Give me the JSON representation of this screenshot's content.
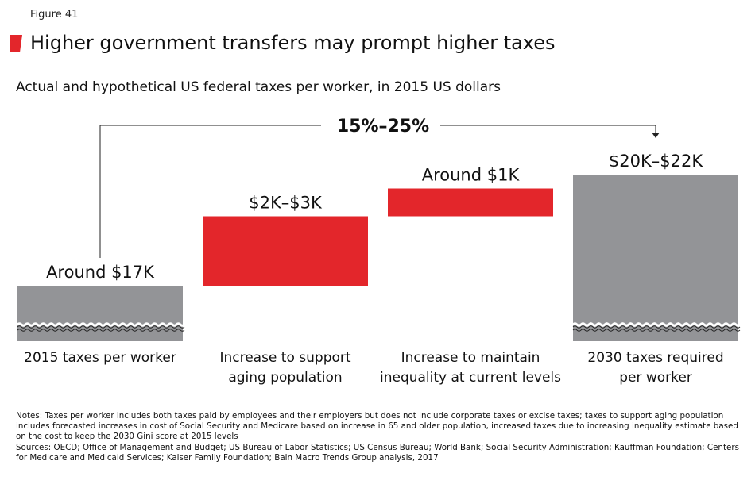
{
  "figure_label": "Figure 41",
  "title": "Higher government transfers may prompt higher taxes",
  "subtitle": "Actual and hypothetical US federal taxes per worker, in 2015 US dollars",
  "colors": {
    "accent": "#e3262b",
    "gray": "#939497",
    "text": "#111111"
  },
  "chart_data": {
    "type": "bar",
    "subtype": "waterfall",
    "axis_break": true,
    "categories": [
      "2015 taxes per worker",
      "Increase to support aging population",
      "Increase to maintain inequality at current levels",
      "2030 taxes required per worker"
    ],
    "category_lines": [
      [
        "2015 taxes per worker"
      ],
      [
        "Increase to support",
        "aging population"
      ],
      [
        "Increase to maintain",
        "inequality at current levels"
      ],
      [
        "2030 taxes required",
        "per worker"
      ]
    ],
    "values": [
      17,
      2.5,
      1,
      21
    ],
    "units": "thousand 2015 US dollars",
    "kinds": [
      "total",
      "increase",
      "increase",
      "total"
    ],
    "colors": [
      "#939497",
      "#e3262b",
      "#e3262b",
      "#939497"
    ],
    "data_labels": [
      "Around $17K",
      "$2K–$3K",
      "Around $1K",
      "$20K–$22K"
    ],
    "annotation": "15%–25%"
  },
  "notes": "Notes: Taxes per worker includes both taxes paid by employees and their employers but does not include corporate taxes or excise taxes; taxes to support aging population includes forecasted increases in cost of Social Security and Medicare based on increase in 65 and older population, increased taxes due to increasing inequality estimate based on the cost to keep the 2030 Gini score at 2015 levels",
  "sources": "Sources: OECD; Office of Management and Budget; US Bureau of Labor Statistics; US Census Bureau; World Bank; Social Security Administration; Kauffman Foundation; Centers for Medicare and Medicaid Services; Kaiser Family Foundation; Bain Macro Trends Group analysis, 2017"
}
